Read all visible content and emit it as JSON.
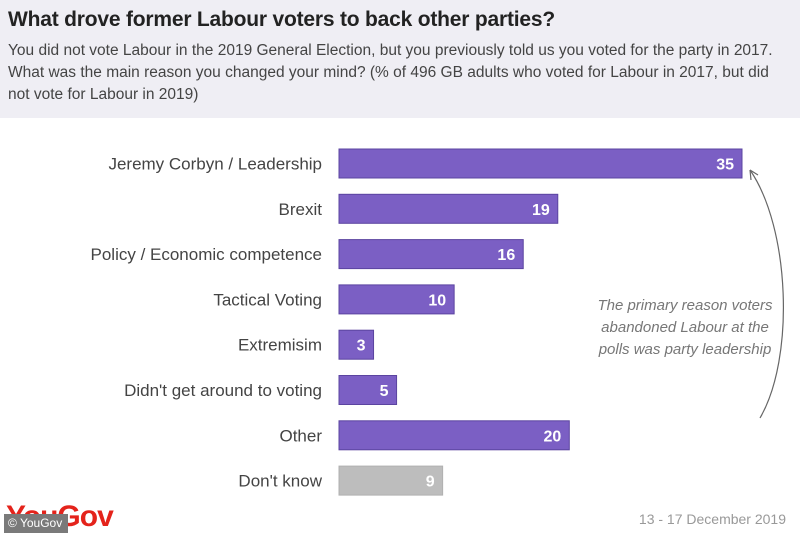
{
  "header": {
    "title": "What drove former Labour voters to back other parties?",
    "subtitle": "You did not vote Labour in the 2019 General Election, but you previously told us you voted for the party in 2017. What was the main reason you changed your mind? (% of 496 GB adults who voted for Labour in 2017, but did not vote for Labour in 2019)"
  },
  "annotation": "The primary reason voters abandoned Labour at the polls was party leadership",
  "footer": {
    "logo": "YouGov",
    "copyright": "© YouGov",
    "date": "13 - 17 December 2019"
  },
  "colors": {
    "primary_bar": "#7b5fc4",
    "muted_bar": "#bdbdbd",
    "brand": "#e4231b"
  },
  "chart_data": {
    "type": "bar",
    "orientation": "horizontal",
    "title": "What drove former Labour voters to back other parties?",
    "xlabel": "",
    "ylabel": "",
    "xlim": [
      0,
      35
    ],
    "grid": false,
    "unit": "%",
    "categories": [
      "Jeremy Corbyn / Leadership",
      "Brexit",
      "Policy / Economic competence",
      "Tactical Voting",
      "Extremisim",
      "Didn't get around to voting",
      "Other",
      "Don't know"
    ],
    "values": [
      35,
      19,
      16,
      10,
      3,
      5,
      20,
      9
    ],
    "highlight": [
      true,
      true,
      true,
      true,
      true,
      true,
      true,
      false
    ]
  }
}
